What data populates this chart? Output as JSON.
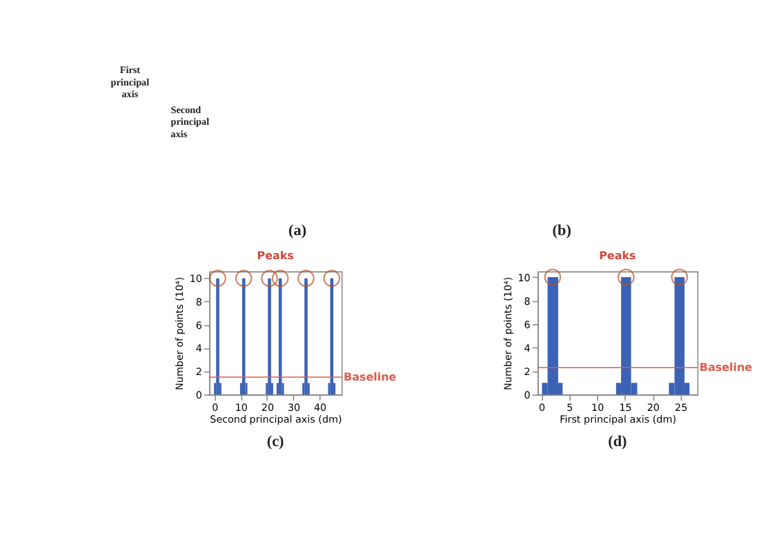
{
  "chart_data": [
    {
      "type": "other",
      "annotations": [
        "First principal axis",
        "Second principal axis",
        "(a)"
      ]
    },
    {
      "type": "other",
      "annotations": [
        "(b)"
      ]
    },
    {
      "type": "histogram",
      "xlabel": "Second principal axis (dm)",
      "ylabel": "Number of points (10⁴)",
      "xlim": [
        -2,
        48.3
      ],
      "ylim": [
        0,
        10.6
      ],
      "xticks": [
        0,
        10,
        20,
        30,
        40
      ],
      "yticks": [
        0,
        2,
        4,
        6,
        8,
        10
      ],
      "series": [
        {
          "type": "histogram",
          "color": "#3b62b4",
          "bins": [
            -0.2,
            0.6,
            1.8,
            2.6,
            9.7,
            10.5,
            11.7,
            12.5,
            19.5,
            20.3,
            21.5,
            22.3,
            23.6,
            24.4,
            25.6,
            26.4,
            33.4,
            34.2,
            35.4,
            36.2,
            43.2,
            44.0,
            45.2,
            46.0
          ],
          "values": [
            1,
            10,
            1,
            0,
            1,
            10,
            1,
            0,
            1,
            10,
            1,
            0,
            1,
            10,
            1,
            0,
            1,
            10,
            1,
            0,
            1,
            10,
            1
          ]
        },
        {
          "type": "scatter",
          "marker": "circle",
          "color": "#b5542a",
          "x": [
            1.2,
            11.1,
            20.9,
            25.0,
            34.8,
            44.6
          ],
          "values": [
            10,
            10,
            10,
            10,
            10,
            10
          ]
        }
      ],
      "ref_lines": [
        {
          "axis": "y",
          "value": 1.5,
          "label": "Baseline",
          "color": "#e05a4a"
        }
      ],
      "annotations": [
        "Peaks",
        "(c)"
      ]
    },
    {
      "type": "histogram",
      "xlabel": "First principal axis (dm)",
      "ylabel": "Number of points (10⁴)",
      "xlim": [
        -0.7,
        28
      ],
      "ylim": [
        0,
        10.5
      ],
      "xticks": [
        0,
        5,
        10,
        15,
        20,
        25
      ],
      "yticks": [
        0,
        2,
        4,
        6,
        8,
        10
      ],
      "series": [
        {
          "type": "histogram",
          "color": "#3b62b4",
          "bins": [
            0.1,
            1.1,
            3.0,
            3.8,
            13.4,
            14.3,
            16.1,
            17.2,
            22.9,
            23.9,
            25.7,
            26.6
          ],
          "values": [
            1,
            10,
            1,
            0,
            1,
            10,
            1,
            0,
            1,
            10,
            1
          ]
        },
        {
          "type": "scatter",
          "marker": "circle",
          "color": "#b5542a",
          "x": [
            2.0,
            15.2,
            24.8
          ],
          "values": [
            10,
            10,
            10
          ]
        }
      ],
      "ref_lines": [
        {
          "axis": "y",
          "value": 2.3,
          "label": "Baseline",
          "color": "#e05a4a"
        }
      ],
      "annotations": [
        "Peaks",
        "(d)"
      ]
    }
  ]
}
